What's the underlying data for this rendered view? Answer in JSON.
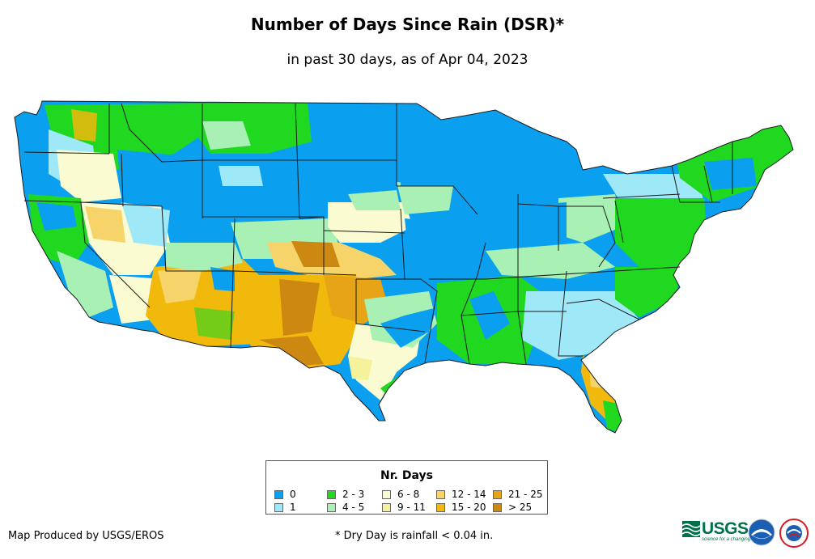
{
  "title": "Number of Days Since Rain (DSR)*",
  "subtitle": "in past 30 days, as of Apr 04, 2023",
  "legend": {
    "title": "Nr. Days",
    "items": [
      {
        "label": "0",
        "color": "#0ba0ef"
      },
      {
        "label": "1",
        "color": "#9ee8f8"
      },
      {
        "label": "2 - 3",
        "color": "#1fd81f"
      },
      {
        "label": "4 - 5",
        "color": "#a8f0b4"
      },
      {
        "label": "6 - 8",
        "color": "#fbfbd2"
      },
      {
        "label": "9 - 11",
        "color": "#f6f29b"
      },
      {
        "label": "12 - 14",
        "color": "#f6d46a"
      },
      {
        "label": "15 - 20",
        "color": "#f2b90d"
      },
      {
        "label": "21 - 25",
        "color": "#e6a416"
      },
      {
        "label": "> 25",
        "color": "#cc8811"
      }
    ]
  },
  "credit": "Map Produced by USGS/EROS",
  "footnote": "* Dry Day is rainfall < 0.04 in.",
  "logos": {
    "usgs": "USGS",
    "usgs_tagline": "science for a changing world"
  },
  "colors": {
    "border": "#1a1a1a",
    "usgs_green": "#00704A",
    "noaa_blue": "#1b5fb3",
    "nws_red": "#d71920"
  }
}
